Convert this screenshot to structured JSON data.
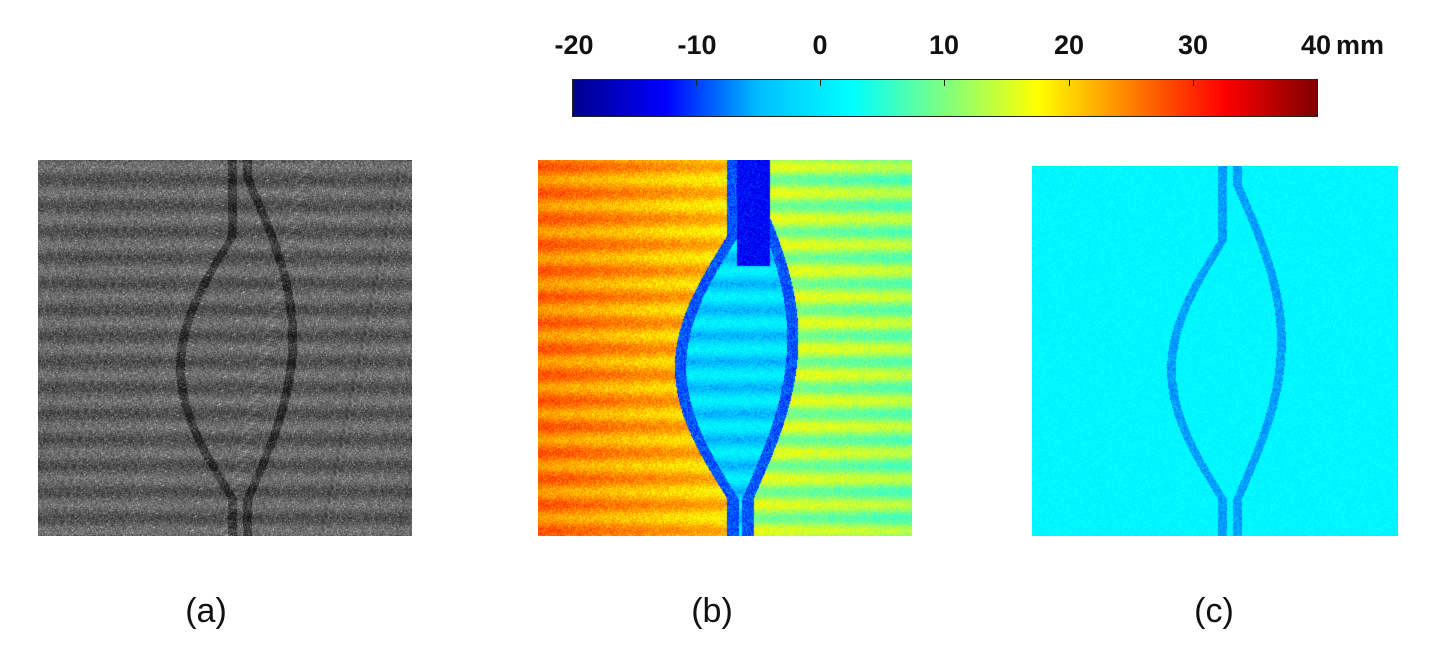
{
  "colorbar": {
    "ticks": [
      "-20",
      "-10",
      "0",
      "10",
      "20",
      "30",
      "40"
    ],
    "unit": "mm",
    "colormap": [
      "#00008f",
      "#0000ff",
      "#00bfff",
      "#00ffff",
      "#7fff7f",
      "#ffff00",
      "#ff7f00",
      "#ff0000",
      "#7f0000"
    ]
  },
  "panels": [
    {
      "caption": "(a)",
      "type": "grayscale"
    },
    {
      "caption": "(b)",
      "type": "jet-map"
    },
    {
      "caption": "(c)",
      "type": "jet-map"
    }
  ]
}
